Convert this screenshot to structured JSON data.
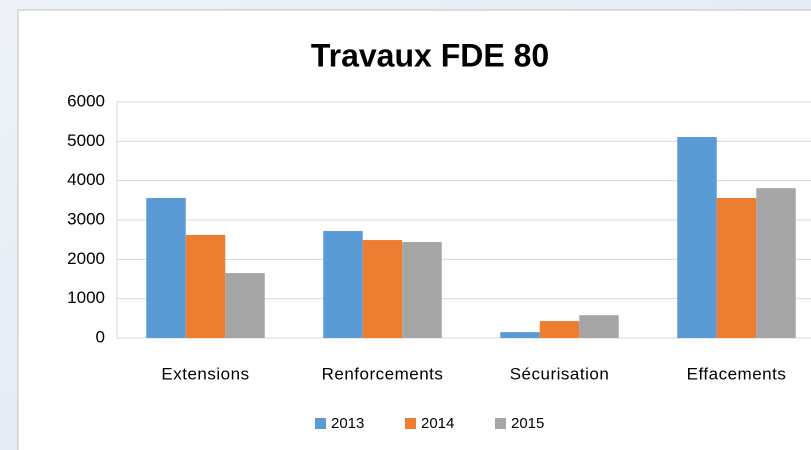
{
  "chart_data": {
    "type": "bar",
    "title": "Travaux FDE 80",
    "categories": [
      "Extensions",
      "Renforcements",
      "Sécurisation",
      "Effacements"
    ],
    "series": [
      {
        "name": "2013",
        "color": "#5b9bd5",
        "values": [
          3560,
          2720,
          150,
          5110
        ]
      },
      {
        "name": "2014",
        "color": "#ed7d31",
        "values": [
          2620,
          2490,
          430,
          3560
        ]
      },
      {
        "name": "2015",
        "color": "#a5a5a5",
        "values": [
          1650,
          2440,
          580,
          3810
        ]
      }
    ],
    "ylim": [
      0,
      6000
    ],
    "yticks": [
      0,
      1000,
      2000,
      3000,
      4000,
      5000,
      6000
    ],
    "grid": true,
    "legend": "bottom"
  }
}
